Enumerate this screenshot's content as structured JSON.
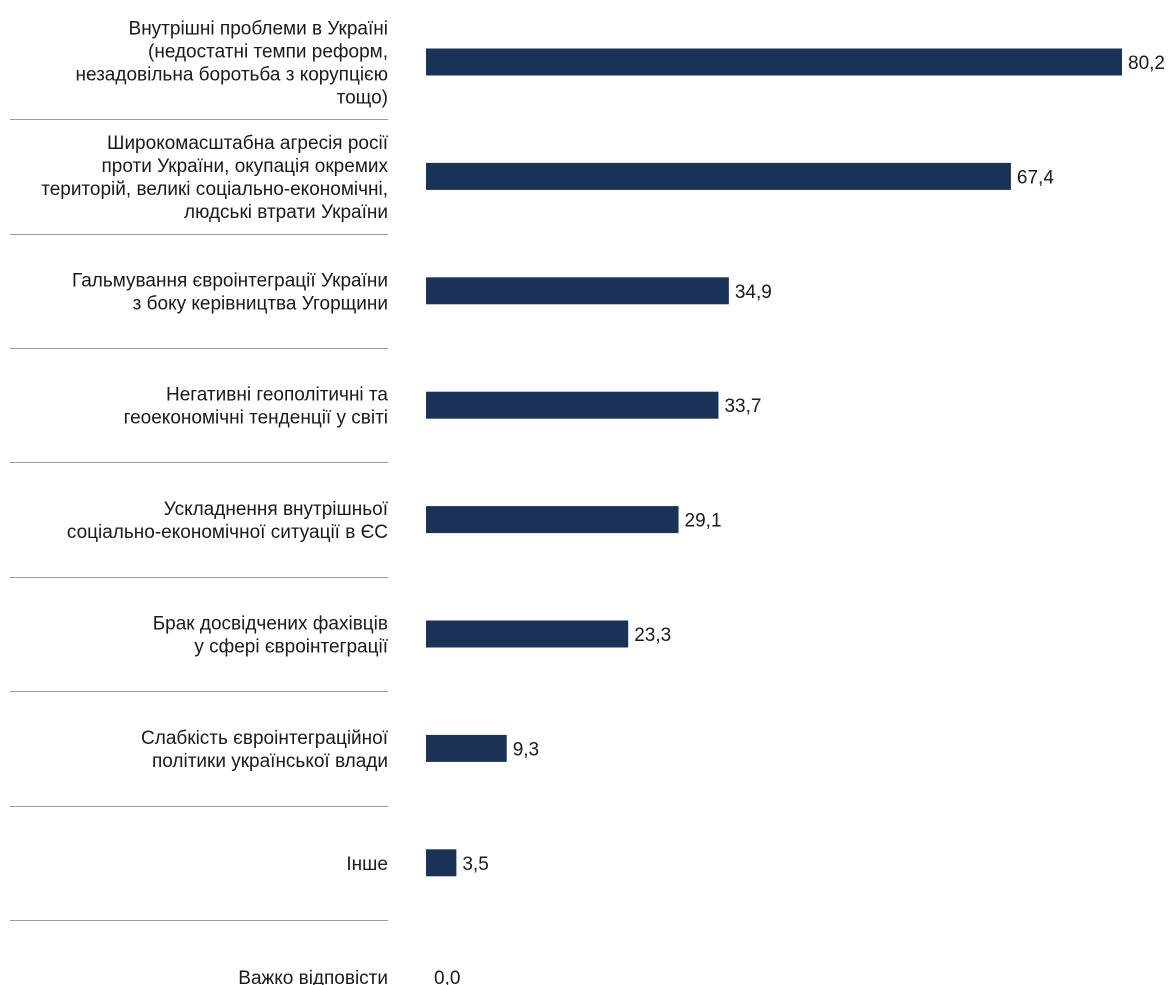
{
  "chart_data": {
    "type": "bar",
    "orientation": "horizontal",
    "categories": [
      [
        "Внутрішні проблеми в Україні",
        "(недостатні темпи реформ,",
        "незадовільна боротьба з корупцією",
        "тощо)"
      ],
      [
        "Широкомасштабна агресія росії",
        "проти України, окупація окремих",
        "територій, великі соціально-економічні,",
        "людські втрати України"
      ],
      [
        "Гальмування євроінтеграції України",
        "з боку керівництва Угорщини"
      ],
      [
        "Негативні геополітичні та",
        "геоекономічні тенденції у світі"
      ],
      [
        "Ускладнення внутрішньої",
        "соціально-економічної ситуації в ЄС"
      ],
      [
        "Брак досвідчених фахівців",
        "у сфері євроінтеграції"
      ],
      [
        "Слабкість євроінтеграційної",
        "політики української влади"
      ],
      [
        "Інше"
      ],
      [
        "Важко відповісти"
      ]
    ],
    "values": [
      80.2,
      67.4,
      34.9,
      33.7,
      29.1,
      23.3,
      9.3,
      3.5,
      0.0
    ],
    "value_labels": [
      "80,2",
      "67,4",
      "34,9",
      "33,7",
      "29,1",
      "23,3",
      "9,3",
      "3,5",
      "0,0"
    ],
    "xlim": [
      0,
      80.2
    ],
    "bar_color": "#1b3257",
    "separator_color": "#9a9a9a",
    "grid": false,
    "legend": "none"
  }
}
